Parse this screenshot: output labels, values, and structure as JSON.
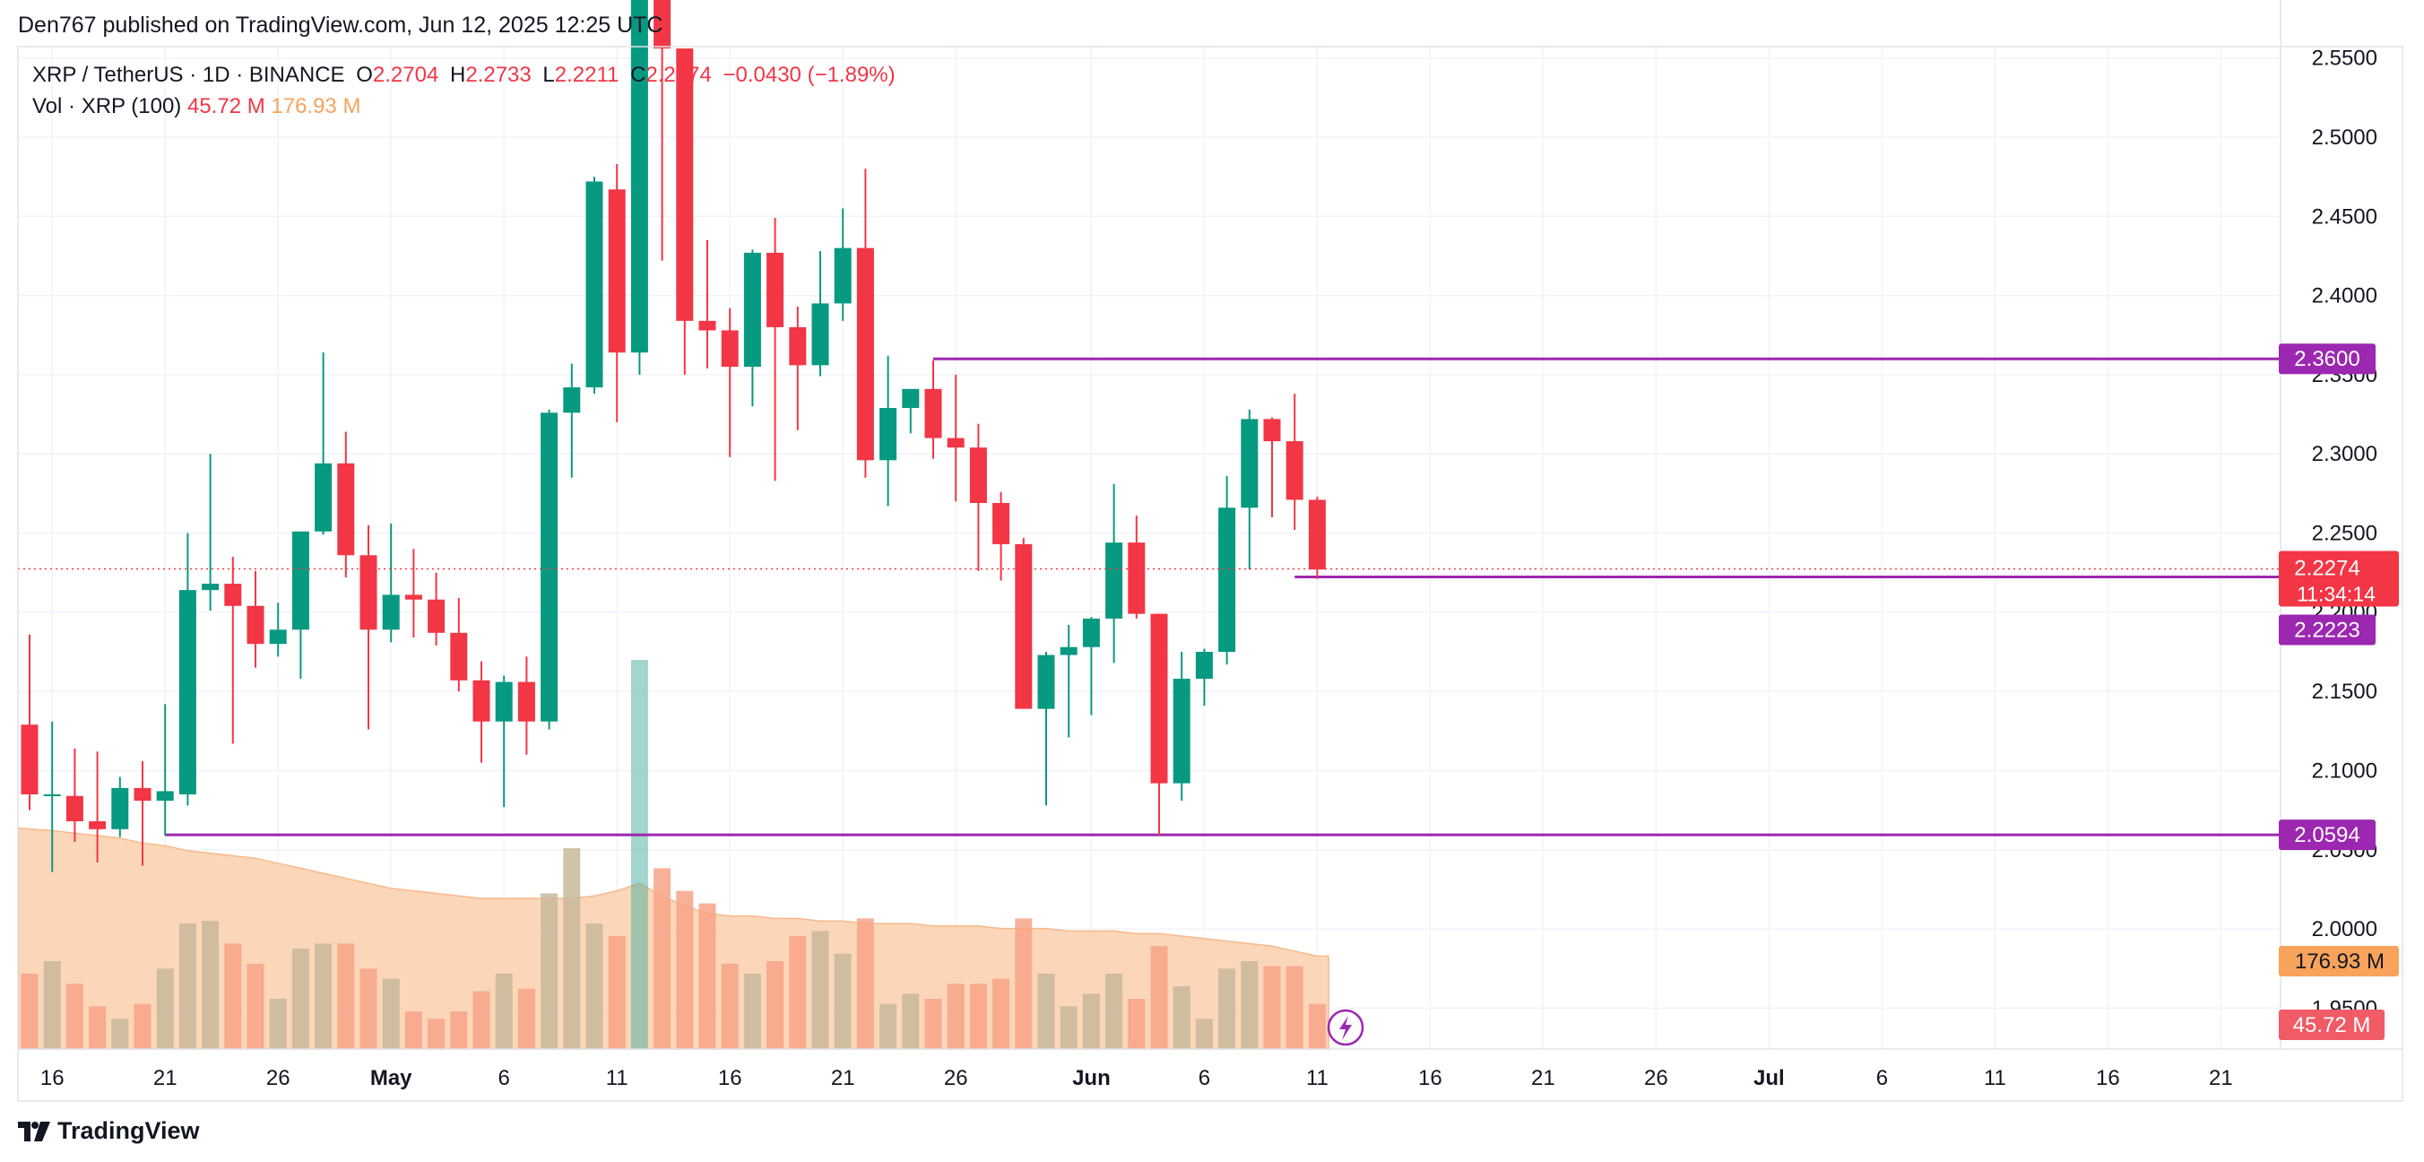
{
  "header": {
    "publisher": "Den767 published on TradingView.com, Jun 12, 2025 12:25 UTC"
  },
  "legend": {
    "symbol": "XRP / TetherUS · 1D · BINANCE",
    "o_label": "O",
    "o_value": "2.2704",
    "h_label": "H",
    "h_value": "2.2733",
    "l_label": "L",
    "l_value": "2.2211",
    "c_label": "C",
    "c_value": "2.2274",
    "change": "−0.0430 (−1.89%)",
    "vol_label": "Vol · XRP (100)",
    "vol_value": "45.72 M",
    "vol_ma_value": "176.93 M"
  },
  "footer": {
    "brand": "TradingView"
  },
  "colors": {
    "up": "#089981",
    "down": "#f23645",
    "level_line": "#9c27b0",
    "vol_up": "#c8b89a",
    "vol_down": "#f7a387",
    "vol_ma_fill": "#fcd2b1",
    "last_price": "#f23645",
    "vol_ma_label": "#f7a35c"
  },
  "chart_data": {
    "type": "candlestick",
    "y_axis": {
      "min": 1.944,
      "max": 2.56,
      "ticks": [
        "2.5500",
        "2.5000",
        "2.4500",
        "2.4000",
        "2.3500",
        "2.3000",
        "2.2500",
        "2.2000",
        "2.1500",
        "2.1000",
        "2.0500",
        "2.0000",
        "1.9500"
      ]
    },
    "x_axis": {
      "ticks": [
        {
          "label": "16",
          "bar": 1
        },
        {
          "label": "21",
          "bar": 6
        },
        {
          "label": "26",
          "bar": 11
        },
        {
          "label": "May",
          "bar": 16
        },
        {
          "label": "6",
          "bar": 21
        },
        {
          "label": "11",
          "bar": 26
        },
        {
          "label": "16",
          "bar": 31
        },
        {
          "label": "21",
          "bar": 36
        },
        {
          "label": "26",
          "bar": 41
        },
        {
          "label": "Jun",
          "bar": 47
        },
        {
          "label": "6",
          "bar": 52
        },
        {
          "label": "11",
          "bar": 57
        },
        {
          "label": "16",
          "bar": 62
        },
        {
          "label": "21",
          "bar": 67
        },
        {
          "label": "26",
          "bar": 72
        },
        {
          "label": "Jul",
          "bar": 77
        },
        {
          "label": "6",
          "bar": 82
        },
        {
          "label": "11",
          "bar": 87
        },
        {
          "label": "16",
          "bar": 92
        },
        {
          "label": "21",
          "bar": 97
        }
      ]
    },
    "candles": [
      {
        "o": 2.129,
        "h": 2.186,
        "l": 2.075,
        "c": 2.085,
        "v": 0.3
      },
      {
        "o": 2.085,
        "h": 2.131,
        "l": 2.036,
        "c": 2.085,
        "v": 0.35
      },
      {
        "o": 2.084,
        "h": 2.114,
        "l": 2.055,
        "c": 2.068,
        "v": 0.26
      },
      {
        "o": 2.068,
        "h": 2.112,
        "l": 2.042,
        "c": 2.063,
        "v": 0.17
      },
      {
        "o": 2.063,
        "h": 2.096,
        "l": 2.058,
        "c": 2.089,
        "v": 0.12
      },
      {
        "o": 2.089,
        "h": 2.106,
        "l": 2.04,
        "c": 2.081,
        "v": 0.18
      },
      {
        "o": 2.081,
        "h": 2.142,
        "l": 2.059,
        "c": 2.087,
        "v": 0.32
      },
      {
        "o": 2.085,
        "h": 2.25,
        "l": 2.078,
        "c": 2.214,
        "v": 0.5
      },
      {
        "o": 2.214,
        "h": 2.3,
        "l": 2.201,
        "c": 2.218,
        "v": 0.51
      },
      {
        "o": 2.218,
        "h": 2.235,
        "l": 2.117,
        "c": 2.204,
        "v": 0.42
      },
      {
        "o": 2.204,
        "h": 2.226,
        "l": 2.165,
        "c": 2.18,
        "v": 0.34
      },
      {
        "o": 2.18,
        "h": 2.206,
        "l": 2.172,
        "c": 2.189,
        "v": 0.2
      },
      {
        "o": 2.189,
        "h": 2.25,
        "l": 2.158,
        "c": 2.251,
        "v": 0.4
      },
      {
        "o": 2.251,
        "h": 2.364,
        "l": 2.249,
        "c": 2.294,
        "v": 0.42
      },
      {
        "o": 2.294,
        "h": 2.314,
        "l": 2.222,
        "c": 2.236,
        "v": 0.42
      },
      {
        "o": 2.236,
        "h": 2.255,
        "l": 2.126,
        "c": 2.189,
        "v": 0.32
      },
      {
        "o": 2.189,
        "h": 2.256,
        "l": 2.181,
        "c": 2.211,
        "v": 0.28
      },
      {
        "o": 2.211,
        "h": 2.24,
        "l": 2.184,
        "c": 2.208,
        "v": 0.15
      },
      {
        "o": 2.208,
        "h": 2.225,
        "l": 2.179,
        "c": 2.187,
        "v": 0.12
      },
      {
        "o": 2.187,
        "h": 2.209,
        "l": 2.15,
        "c": 2.157,
        "v": 0.15
      },
      {
        "o": 2.157,
        "h": 2.169,
        "l": 2.105,
        "c": 2.131,
        "v": 0.23
      },
      {
        "o": 2.131,
        "h": 2.16,
        "l": 2.077,
        "c": 2.156,
        "v": 0.3
      },
      {
        "o": 2.156,
        "h": 2.172,
        "l": 2.11,
        "c": 2.131,
        "v": 0.24
      },
      {
        "o": 2.131,
        "h": 2.328,
        "l": 2.126,
        "c": 2.326,
        "v": 0.62
      },
      {
        "o": 2.326,
        "h": 2.357,
        "l": 2.285,
        "c": 2.342,
        "v": 0.8
      },
      {
        "o": 2.342,
        "h": 2.475,
        "l": 2.338,
        "c": 2.472,
        "v": 0.5
      },
      {
        "o": 2.467,
        "h": 2.483,
        "l": 2.32,
        "c": 2.364,
        "v": 0.45
      },
      {
        "o": 2.364,
        "h": 2.611,
        "l": 2.35,
        "c": 2.614,
        "v": 1.55
      },
      {
        "o": 2.614,
        "h": 2.611,
        "l": 2.422,
        "c": 2.556,
        "v": 0.72
      },
      {
        "o": 2.556,
        "h": 2.553,
        "l": 2.35,
        "c": 2.384,
        "v": 0.63
      },
      {
        "o": 2.384,
        "h": 2.435,
        "l": 2.354,
        "c": 2.378,
        "v": 0.58
      },
      {
        "o": 2.378,
        "h": 2.392,
        "l": 2.298,
        "c": 2.355,
        "v": 0.34
      },
      {
        "o": 2.355,
        "h": 2.429,
        "l": 2.33,
        "c": 2.427,
        "v": 0.3
      },
      {
        "o": 2.427,
        "h": 2.449,
        "l": 2.283,
        "c": 2.38,
        "v": 0.35
      },
      {
        "o": 2.38,
        "h": 2.393,
        "l": 2.315,
        "c": 2.356,
        "v": 0.45
      },
      {
        "o": 2.356,
        "h": 2.428,
        "l": 2.349,
        "c": 2.395,
        "v": 0.47
      },
      {
        "o": 2.395,
        "h": 2.455,
        "l": 2.384,
        "c": 2.43,
        "v": 0.38
      },
      {
        "o": 2.43,
        "h": 2.48,
        "l": 2.285,
        "c": 2.296,
        "v": 0.52
      },
      {
        "o": 2.296,
        "h": 2.362,
        "l": 2.267,
        "c": 2.329,
        "v": 0.18
      },
      {
        "o": 2.329,
        "h": 2.339,
        "l": 2.313,
        "c": 2.341,
        "v": 0.22
      },
      {
        "o": 2.341,
        "h": 2.359,
        "l": 2.297,
        "c": 2.31,
        "v": 0.2
      },
      {
        "o": 2.31,
        "h": 2.35,
        "l": 2.27,
        "c": 2.304,
        "v": 0.26
      },
      {
        "o": 2.304,
        "h": 2.319,
        "l": 2.226,
        "c": 2.269,
        "v": 0.26
      },
      {
        "o": 2.269,
        "h": 2.276,
        "l": 2.22,
        "c": 2.243,
        "v": 0.28
      },
      {
        "o": 2.243,
        "h": 2.247,
        "l": 2.139,
        "c": 2.139,
        "v": 0.52
      },
      {
        "o": 2.139,
        "h": 2.175,
        "l": 2.078,
        "c": 2.173,
        "v": 0.3
      },
      {
        "o": 2.173,
        "h": 2.192,
        "l": 2.121,
        "c": 2.178,
        "v": 0.17
      },
      {
        "o": 2.178,
        "h": 2.197,
        "l": 2.135,
        "c": 2.196,
        "v": 0.22
      },
      {
        "o": 2.196,
        "h": 2.281,
        "l": 2.168,
        "c": 2.244,
        "v": 0.3
      },
      {
        "o": 2.244,
        "h": 2.261,
        "l": 2.196,
        "c": 2.199,
        "v": 0.2
      },
      {
        "o": 2.199,
        "h": 2.199,
        "l": 2.059,
        "c": 2.092,
        "v": 0.41
      },
      {
        "o": 2.092,
        "h": 2.175,
        "l": 2.081,
        "c": 2.158,
        "v": 0.25
      },
      {
        "o": 2.158,
        "h": 2.177,
        "l": 2.141,
        "c": 2.175,
        "v": 0.12
      },
      {
        "o": 2.175,
        "h": 2.286,
        "l": 2.167,
        "c": 2.266,
        "v": 0.32
      },
      {
        "o": 2.266,
        "h": 2.328,
        "l": 2.227,
        "c": 2.322,
        "v": 0.35
      },
      {
        "o": 2.322,
        "h": 2.323,
        "l": 2.26,
        "c": 2.308,
        "v": 0.33
      },
      {
        "o": 2.308,
        "h": 2.338,
        "l": 2.252,
        "c": 2.271,
        "v": 0.33
      },
      {
        "o": 2.271,
        "h": 2.273,
        "l": 2.221,
        "c": 2.227,
        "v": 0.18
      }
    ],
    "volume_ma": [
      0.88,
      0.87,
      0.86,
      0.85,
      0.84,
      0.82,
      0.81,
      0.79,
      0.78,
      0.77,
      0.76,
      0.74,
      0.72,
      0.7,
      0.68,
      0.66,
      0.64,
      0.63,
      0.62,
      0.61,
      0.6,
      0.6,
      0.6,
      0.6,
      0.6,
      0.61,
      0.63,
      0.66,
      0.61,
      0.57,
      0.54,
      0.53,
      0.53,
      0.52,
      0.52,
      0.51,
      0.51,
      0.5,
      0.5,
      0.5,
      0.49,
      0.49,
      0.49,
      0.48,
      0.48,
      0.48,
      0.47,
      0.47,
      0.47,
      0.46,
      0.46,
      0.45,
      0.44,
      0.43,
      0.42,
      0.41,
      0.39,
      0.37
    ],
    "levels": [
      {
        "price": 2.36,
        "label": "2.3600",
        "from_bar": 40
      },
      {
        "price": 2.2223,
        "label": "2.2223",
        "from_bar": 56
      },
      {
        "price": 2.0594,
        "label": "2.0594",
        "from_bar": 6
      }
    ],
    "last_price": {
      "label": "2.2274",
      "countdown": "11:34:14",
      "price": 2.2274
    },
    "volume_labels": {
      "ma": "176.93 M",
      "current": "45.72 M"
    }
  }
}
